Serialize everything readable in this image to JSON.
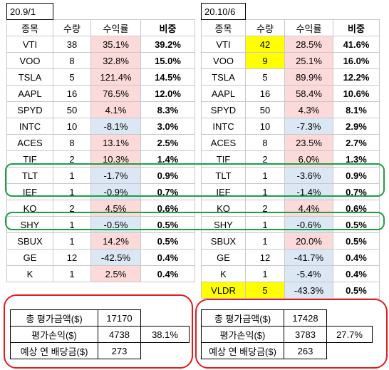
{
  "left": {
    "date": "20.9/1",
    "headers": [
      "종목",
      "수량",
      "수익률",
      "비중"
    ],
    "rows": [
      {
        "ticker": "VTI",
        "qty": "38",
        "ret": "35.1%",
        "weight": "39.2%",
        "ret_color": "pink"
      },
      {
        "ticker": "VOO",
        "qty": "8",
        "ret": "32.8%",
        "weight": "15.0%",
        "ret_color": "pink"
      },
      {
        "ticker": "TSLA",
        "qty": "5",
        "ret": "121.4%",
        "weight": "14.5%",
        "ret_color": "pink"
      },
      {
        "ticker": "AAPL",
        "qty": "16",
        "ret": "76.5%",
        "weight": "12.0%",
        "ret_color": "pink"
      },
      {
        "ticker": "SPYD",
        "qty": "50",
        "ret": "4.1%",
        "weight": "8.3%",
        "ret_color": "pink"
      },
      {
        "ticker": "INTC",
        "qty": "10",
        "ret": "-8.1%",
        "weight": "3.0%",
        "ret_color": "blue"
      },
      {
        "ticker": "ACES",
        "qty": "8",
        "ret": "13.1%",
        "weight": "2.5%",
        "ret_color": "pink"
      },
      {
        "ticker": "TIF",
        "qty": "2",
        "ret": "10.3%",
        "weight": "1.4%",
        "ret_color": "pink"
      },
      {
        "ticker": "TLT",
        "qty": "1",
        "ret": "-1.7%",
        "weight": "0.9%",
        "ret_color": "blue"
      },
      {
        "ticker": "IEF",
        "qty": "1",
        "ret": "-0.9%",
        "weight": "0.7%",
        "ret_color": "blue"
      },
      {
        "ticker": "KO",
        "qty": "2",
        "ret": "4.5%",
        "weight": "0.6%",
        "ret_color": "pink"
      },
      {
        "ticker": "SHY",
        "qty": "1",
        "ret": "-0.5%",
        "weight": "0.5%",
        "ret_color": "blue"
      },
      {
        "ticker": "SBUX",
        "qty": "1",
        "ret": "14.2%",
        "weight": "0.5%",
        "ret_color": "pink"
      },
      {
        "ticker": "GE",
        "qty": "12",
        "ret": "-42.5%",
        "weight": "0.4%",
        "ret_color": "blue"
      },
      {
        "ticker": "K",
        "qty": "1",
        "ret": "2.5%",
        "weight": "0.4%",
        "ret_color": "pink"
      }
    ],
    "summary": {
      "total_label": "총 평가금액($)",
      "total_value": "17170",
      "pnl_label": "평가손익($)",
      "pnl_value": "4738",
      "pnl_pct": "38.1%",
      "div_label": "예상 연 배당금($)",
      "div_value": "273"
    }
  },
  "right": {
    "date": "20.10/6",
    "headers": [
      "종목",
      "수량",
      "수익률",
      "비중"
    ],
    "rows": [
      {
        "ticker": "VTI",
        "qty": "42",
        "ret": "28.5%",
        "weight": "41.6%",
        "ret_color": "pink",
        "qty_color": "yellow"
      },
      {
        "ticker": "VOO",
        "qty": "9",
        "ret": "25.1%",
        "weight": "16.0%",
        "ret_color": "pink",
        "qty_color": "yellow"
      },
      {
        "ticker": "TSLA",
        "qty": "5",
        "ret": "89.9%",
        "weight": "12.2%",
        "ret_color": "pink"
      },
      {
        "ticker": "AAPL",
        "qty": "16",
        "ret": "58.4%",
        "weight": "10.6%",
        "ret_color": "pink"
      },
      {
        "ticker": "SPYD",
        "qty": "50",
        "ret": "4.3%",
        "weight": "8.1%",
        "ret_color": "pink"
      },
      {
        "ticker": "INTC",
        "qty": "10",
        "ret": "-7.3%",
        "weight": "2.9%",
        "ret_color": "blue"
      },
      {
        "ticker": "ACES",
        "qty": "8",
        "ret": "23.5%",
        "weight": "2.7%",
        "ret_color": "pink"
      },
      {
        "ticker": "TIF",
        "qty": "2",
        "ret": "6.0%",
        "weight": "1.3%",
        "ret_color": "pink"
      },
      {
        "ticker": "TLT",
        "qty": "1",
        "ret": "-3.6%",
        "weight": "0.9%",
        "ret_color": "blue"
      },
      {
        "ticker": "IEF",
        "qty": "1",
        "ret": "-1.4%",
        "weight": "0.7%",
        "ret_color": "blue"
      },
      {
        "ticker": "KO",
        "qty": "2",
        "ret": "4.4%",
        "weight": "0.6%",
        "ret_color": "pink"
      },
      {
        "ticker": "SHY",
        "qty": "1",
        "ret": "-0.6%",
        "weight": "0.5%",
        "ret_color": "blue"
      },
      {
        "ticker": "SBUX",
        "qty": "1",
        "ret": "20.0%",
        "weight": "0.5%",
        "ret_color": "pink"
      },
      {
        "ticker": "GE",
        "qty": "12",
        "ret": "-41.7%",
        "weight": "0.4%",
        "ret_color": "blue"
      },
      {
        "ticker": "K",
        "qty": "1",
        "ret": "-5.4%",
        "weight": "0.4%",
        "ret_color": "blue"
      },
      {
        "ticker": "VLDR",
        "qty": "5",
        "ret": "-43.3%",
        "weight": "0.5%",
        "ret_color": "blue",
        "qty_color": "yellow",
        "ticker_color": "yellow"
      }
    ],
    "summary": {
      "total_label": "총 평가금액($)",
      "total_value": "17428",
      "pnl_label": "평가손익($)",
      "pnl_value": "3783",
      "pnl_pct": "27.7%",
      "div_label": "예상 연 배당금($)",
      "div_value": "263"
    }
  },
  "colors": {
    "pink": "#fcdada",
    "blue": "#dbe7f5",
    "yellow": "#ffff00",
    "highlight_red": "#e31b1b",
    "highlight_green": "#1f9e44"
  }
}
